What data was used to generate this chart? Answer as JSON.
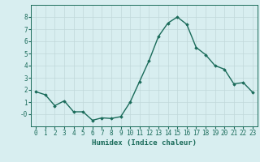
{
  "x": [
    0,
    1,
    2,
    3,
    4,
    5,
    6,
    7,
    8,
    9,
    10,
    11,
    12,
    13,
    14,
    15,
    16,
    17,
    18,
    19,
    20,
    21,
    22,
    23
  ],
  "y": [
    1.85,
    1.6,
    0.7,
    1.1,
    0.2,
    0.2,
    -0.5,
    -0.3,
    -0.35,
    -0.2,
    1.0,
    2.7,
    4.4,
    6.4,
    7.5,
    8.0,
    7.4,
    5.5,
    4.9,
    4.0,
    3.7,
    2.5,
    2.6,
    1.8
  ],
  "line_color": "#1a6b5a",
  "marker": "D",
  "marker_size": 1.8,
  "background_color": "#d8eef0",
  "grid_color": "#c0d8da",
  "xlabel": "Humidex (Indice chaleur)",
  "xlim": [
    -0.5,
    23.5
  ],
  "ylim": [
    -1.0,
    9.0
  ],
  "ytick_vals": [
    0,
    1,
    2,
    3,
    4,
    5,
    6,
    7,
    8
  ],
  "ytick_labels": [
    "-0",
    "1",
    "2",
    "3",
    "4",
    "5",
    "6",
    "7",
    "8"
  ],
  "xticks": [
    0,
    1,
    2,
    3,
    4,
    5,
    6,
    7,
    8,
    9,
    10,
    11,
    12,
    13,
    14,
    15,
    16,
    17,
    18,
    19,
    20,
    21,
    22,
    23
  ],
  "line_width": 1.0,
  "tick_fontsize": 5.5,
  "xlabel_fontsize": 6.5
}
